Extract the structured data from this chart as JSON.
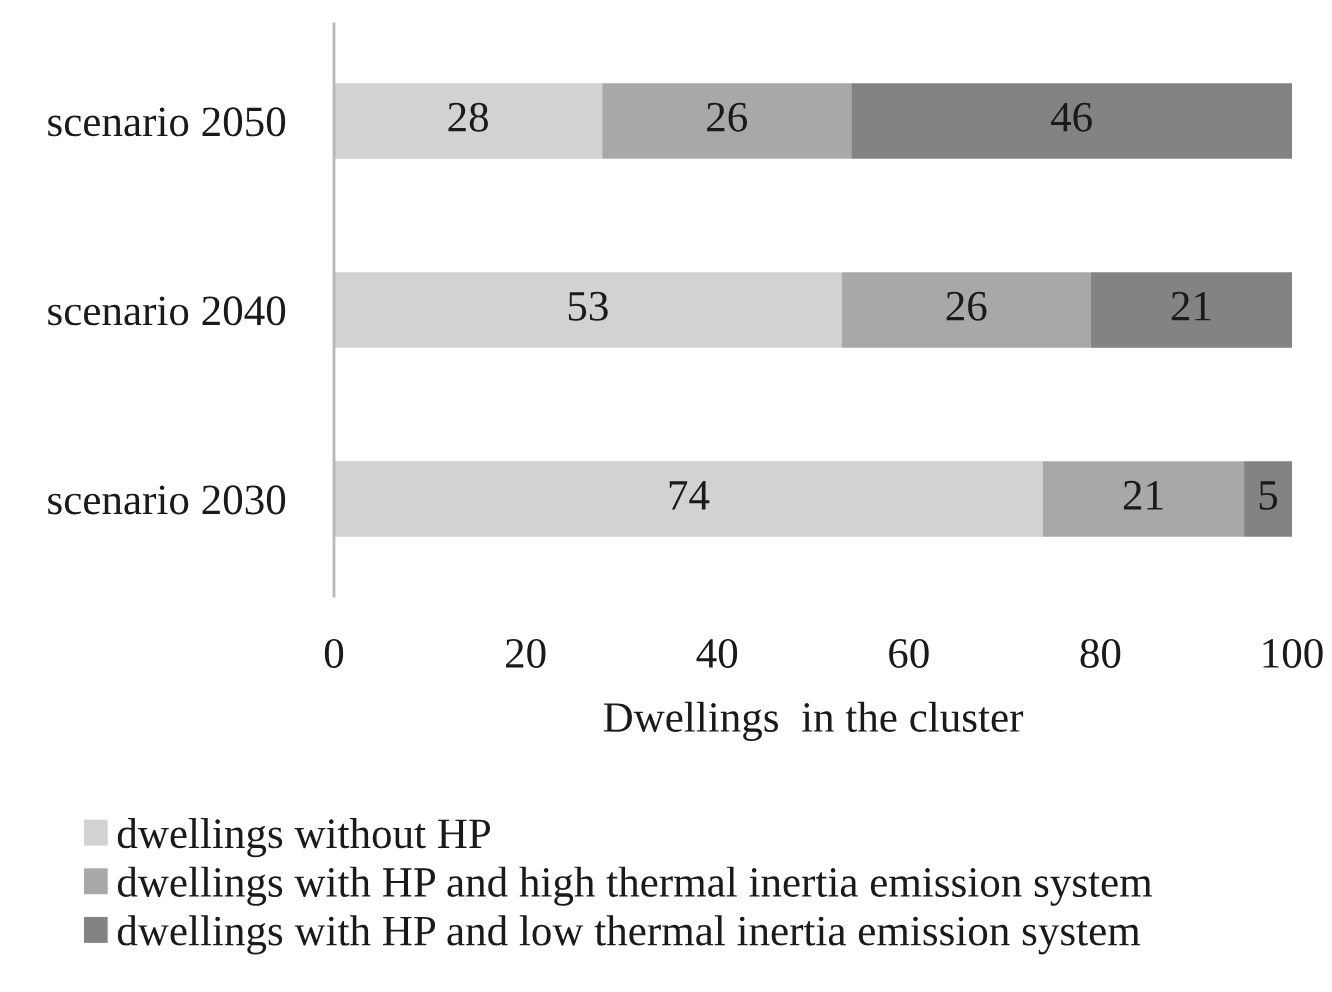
{
  "chart_data": {
    "type": "bar",
    "orientation": "horizontal",
    "stacked": true,
    "xlabel": "Dwellings  in the cluster",
    "categories": [
      "scenario 2050",
      "scenario 2040",
      "scenario 2030"
    ],
    "series": [
      {
        "name": "dwellings without HP",
        "color": "#d2d2d2",
        "values": [
          28,
          53,
          74
        ]
      },
      {
        "name": "dwellings with HP and high thermal inertia emission system",
        "color": "#a8a8a8",
        "values": [
          26,
          26,
          21
        ]
      },
      {
        "name": "dwellings with HP and low thermal inertia emission system",
        "color": "#838383",
        "values": [
          46,
          21,
          5
        ]
      }
    ],
    "xlim": [
      0,
      100
    ],
    "xticks": [
      0,
      20,
      40,
      60,
      80,
      100
    ],
    "data_labels": true,
    "grid": false,
    "legend": "bottom"
  }
}
